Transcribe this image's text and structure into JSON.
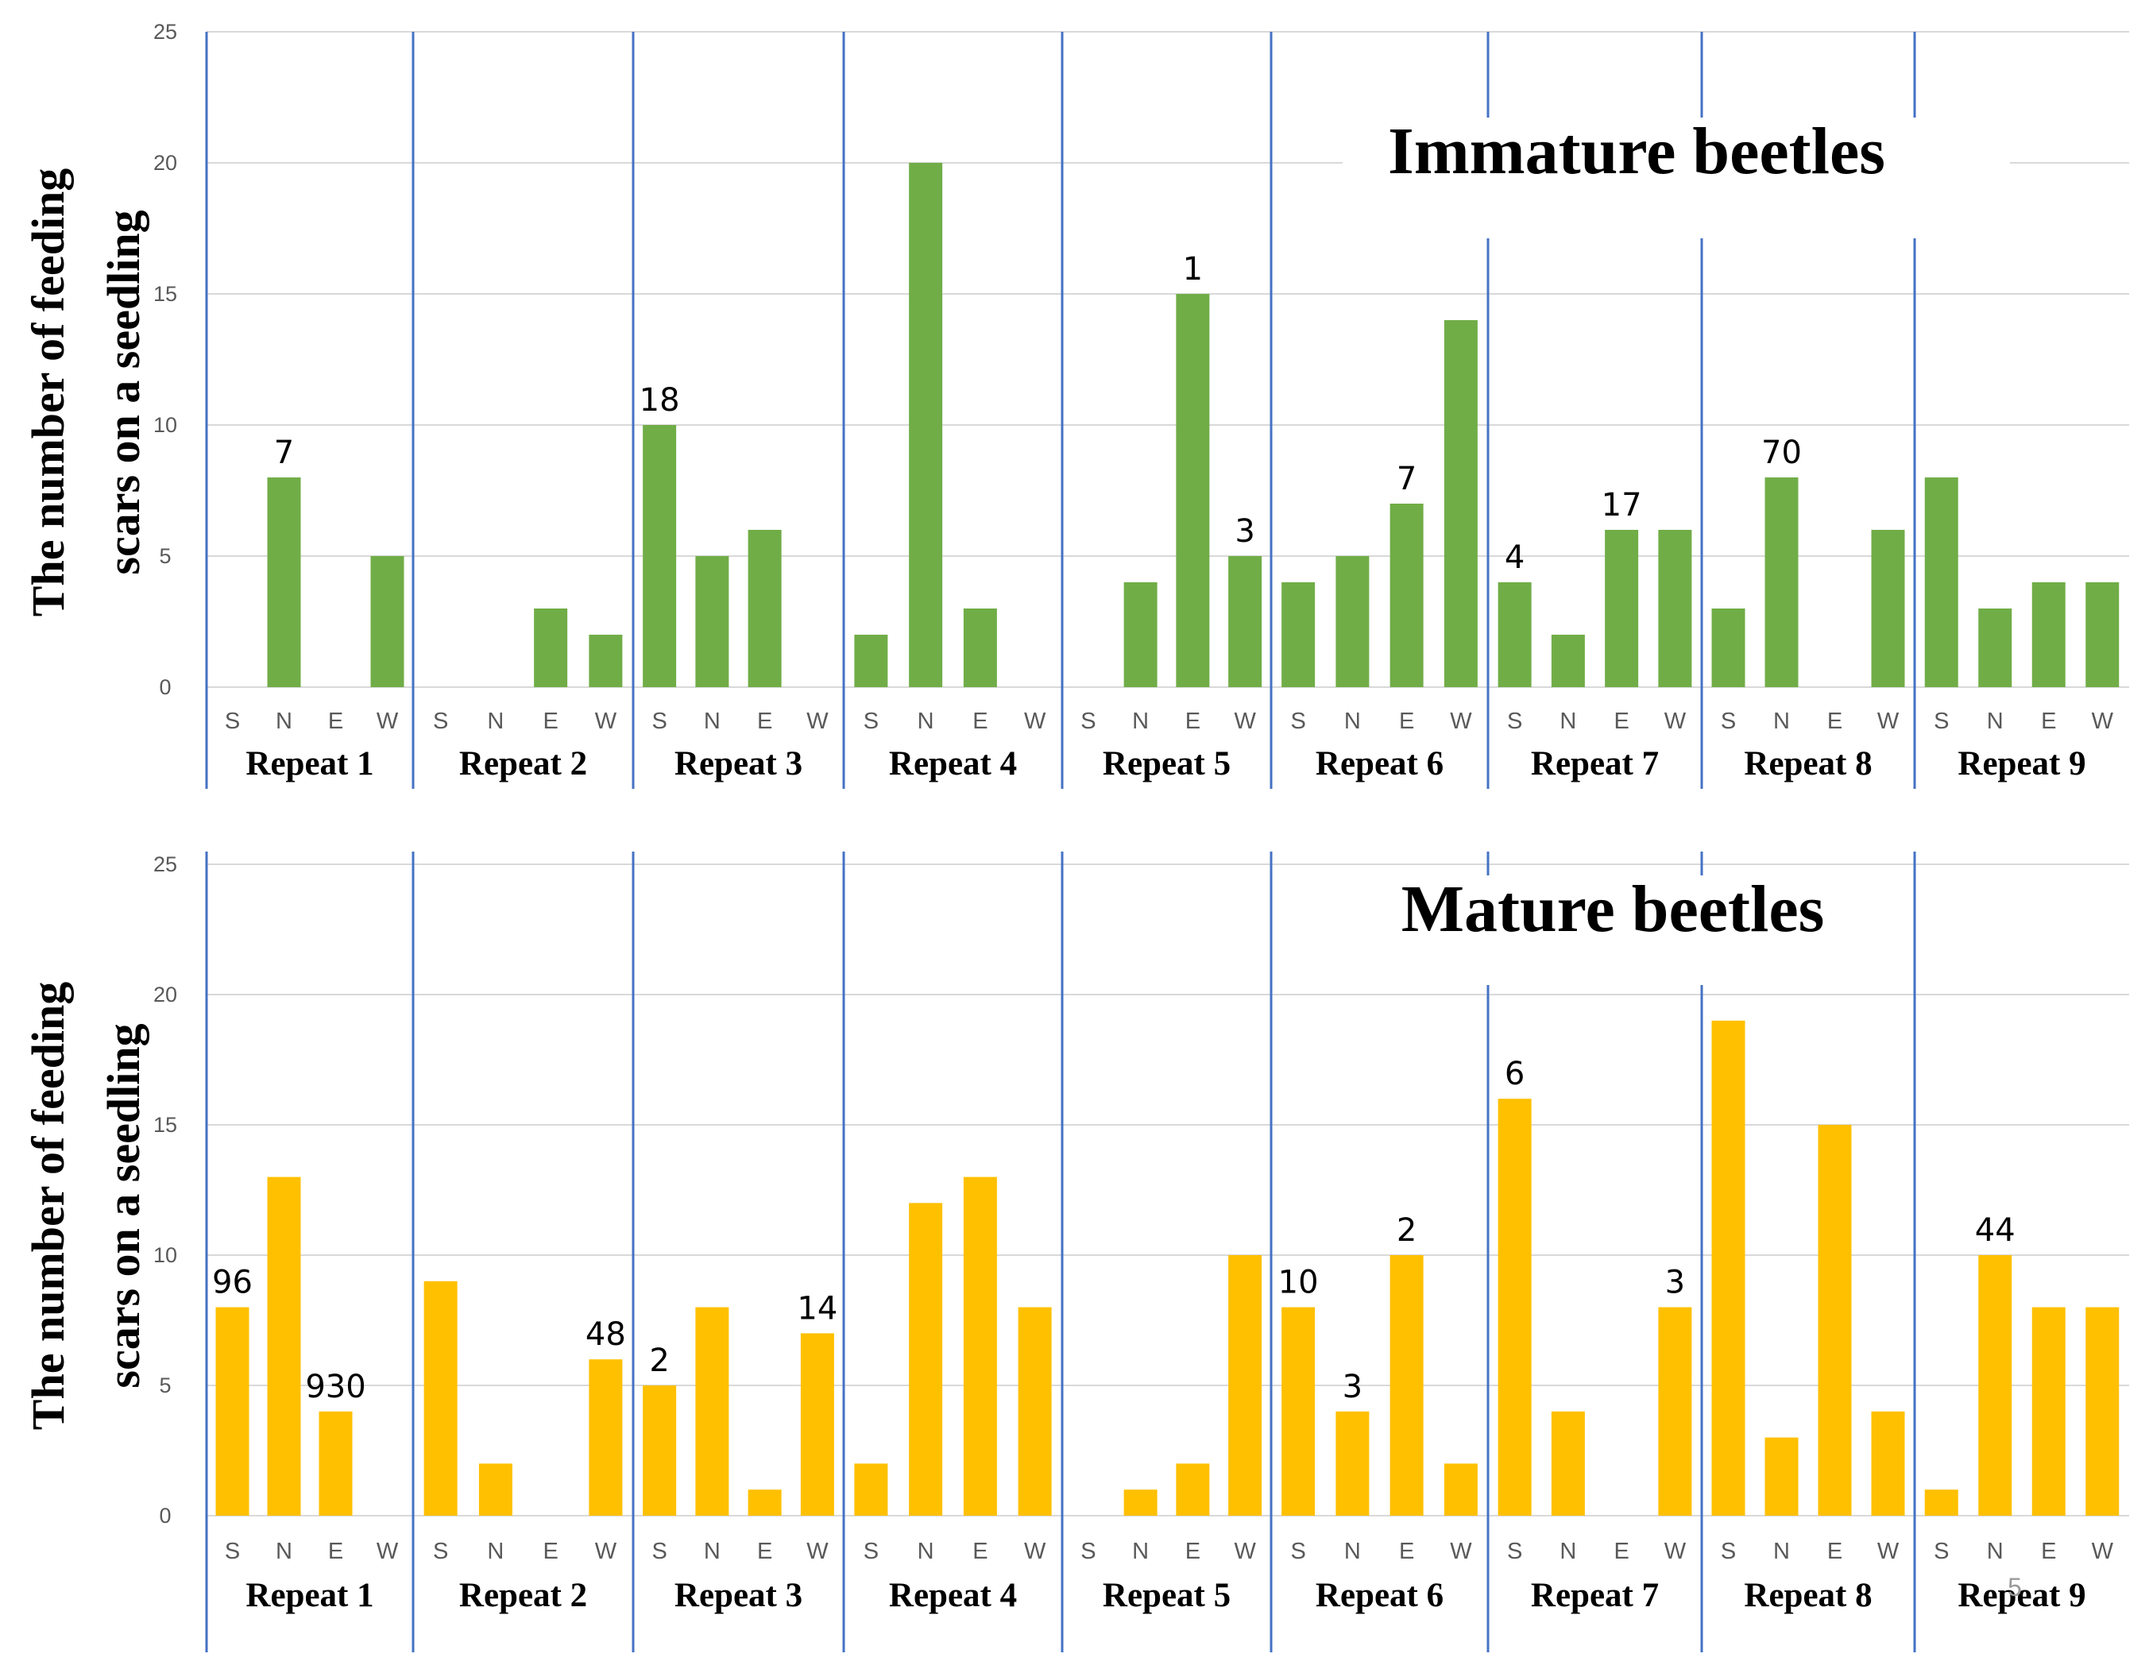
{
  "chart_data": [
    {
      "type": "bar",
      "title": "Immature beetles",
      "ylabel_lines": [
        "The number of feeding",
        "scars on a seedling"
      ],
      "ylim": [
        0,
        25
      ],
      "yticks": [
        "0",
        "5",
        "10",
        "15",
        "20",
        "25"
      ],
      "directions": [
        "S",
        "N",
        "E",
        "W"
      ],
      "groups": [
        {
          "label": "Repeat 1",
          "values": [
            0,
            8,
            0,
            5
          ]
        },
        {
          "label": "Repeat 2",
          "values": [
            0,
            0,
            3,
            2
          ]
        },
        {
          "label": "Repeat 3",
          "values": [
            10,
            5,
            6,
            0
          ]
        },
        {
          "label": "Repeat 4",
          "values": [
            2,
            20,
            3,
            0
          ]
        },
        {
          "label": "Repeat 5",
          "values": [
            0,
            4,
            15,
            5
          ]
        },
        {
          "label": "Repeat 6",
          "values": [
            4,
            5,
            7,
            14
          ]
        },
        {
          "label": "Repeat 7",
          "values": [
            4,
            2,
            6,
            6
          ]
        },
        {
          "label": "Repeat 8",
          "values": [
            3,
            8,
            0,
            6
          ]
        },
        {
          "label": "Repeat 9",
          "values": [
            8,
            3,
            4,
            4
          ]
        }
      ],
      "color": "#70ad47",
      "annotations": [
        {
          "group": 0,
          "dir": 1,
          "text": "7"
        },
        {
          "group": 2,
          "dir": 0,
          "text": "18"
        },
        {
          "group": 4,
          "dir": 2,
          "text": "1"
        },
        {
          "group": 4,
          "dir": 3,
          "text": "3"
        },
        {
          "group": 5,
          "dir": 2,
          "text": "7"
        },
        {
          "group": 6,
          "dir": 0,
          "text": "4"
        },
        {
          "group": 6,
          "dir": 2,
          "text": "17"
        },
        {
          "group": 7,
          "dir": 1,
          "text": "70"
        }
      ]
    },
    {
      "type": "bar",
      "title": "Mature beetles",
      "ylabel_lines": [
        "The number of feeding",
        "scars on a seedling"
      ],
      "ylim": [
        0,
        25
      ],
      "yticks": [
        "0",
        "5",
        "10",
        "15",
        "20",
        "25"
      ],
      "directions": [
        "S",
        "N",
        "E",
        "W"
      ],
      "groups": [
        {
          "label": "Repeat 1",
          "values": [
            8,
            13,
            4,
            0
          ]
        },
        {
          "label": "Repeat 2",
          "values": [
            9,
            2,
            0,
            6
          ]
        },
        {
          "label": "Repeat 3",
          "values": [
            5,
            8,
            1,
            7
          ]
        },
        {
          "label": "Repeat 4",
          "values": [
            2,
            12,
            13,
            8
          ]
        },
        {
          "label": "Repeat 5",
          "values": [
            0,
            1,
            2,
            10
          ]
        },
        {
          "label": "Repeat 6",
          "values": [
            8,
            4,
            10,
            2
          ]
        },
        {
          "label": "Repeat 7",
          "values": [
            16,
            4,
            0,
            8
          ]
        },
        {
          "label": "Repeat 8",
          "values": [
            19,
            3,
            15,
            4
          ]
        },
        {
          "label": "Repeat 9",
          "values": [
            1,
            10,
            8,
            8
          ]
        }
      ],
      "color": "#ffc000",
      "annotations": [
        {
          "group": 0,
          "dir": 0,
          "text": "96"
        },
        {
          "group": 0,
          "dir": 2,
          "text": "930"
        },
        {
          "group": 1,
          "dir": 3,
          "text": "48"
        },
        {
          "group": 2,
          "dir": 0,
          "text": "2"
        },
        {
          "group": 2,
          "dir": 3,
          "text": "14"
        },
        {
          "group": 5,
          "dir": 0,
          "text": "10"
        },
        {
          "group": 5,
          "dir": 1,
          "text": "3"
        },
        {
          "group": 5,
          "dir": 2,
          "text": "2"
        },
        {
          "group": 6,
          "dir": 0,
          "text": "6"
        },
        {
          "group": 6,
          "dir": 3,
          "text": "3"
        },
        {
          "group": 8,
          "dir": 1,
          "text": "44"
        }
      ]
    }
  ],
  "watermark": "5",
  "colors": {
    "grid": "#d9d9d9",
    "separator": "#4472c4",
    "immature": "#70ad47",
    "mature": "#ffc000"
  }
}
